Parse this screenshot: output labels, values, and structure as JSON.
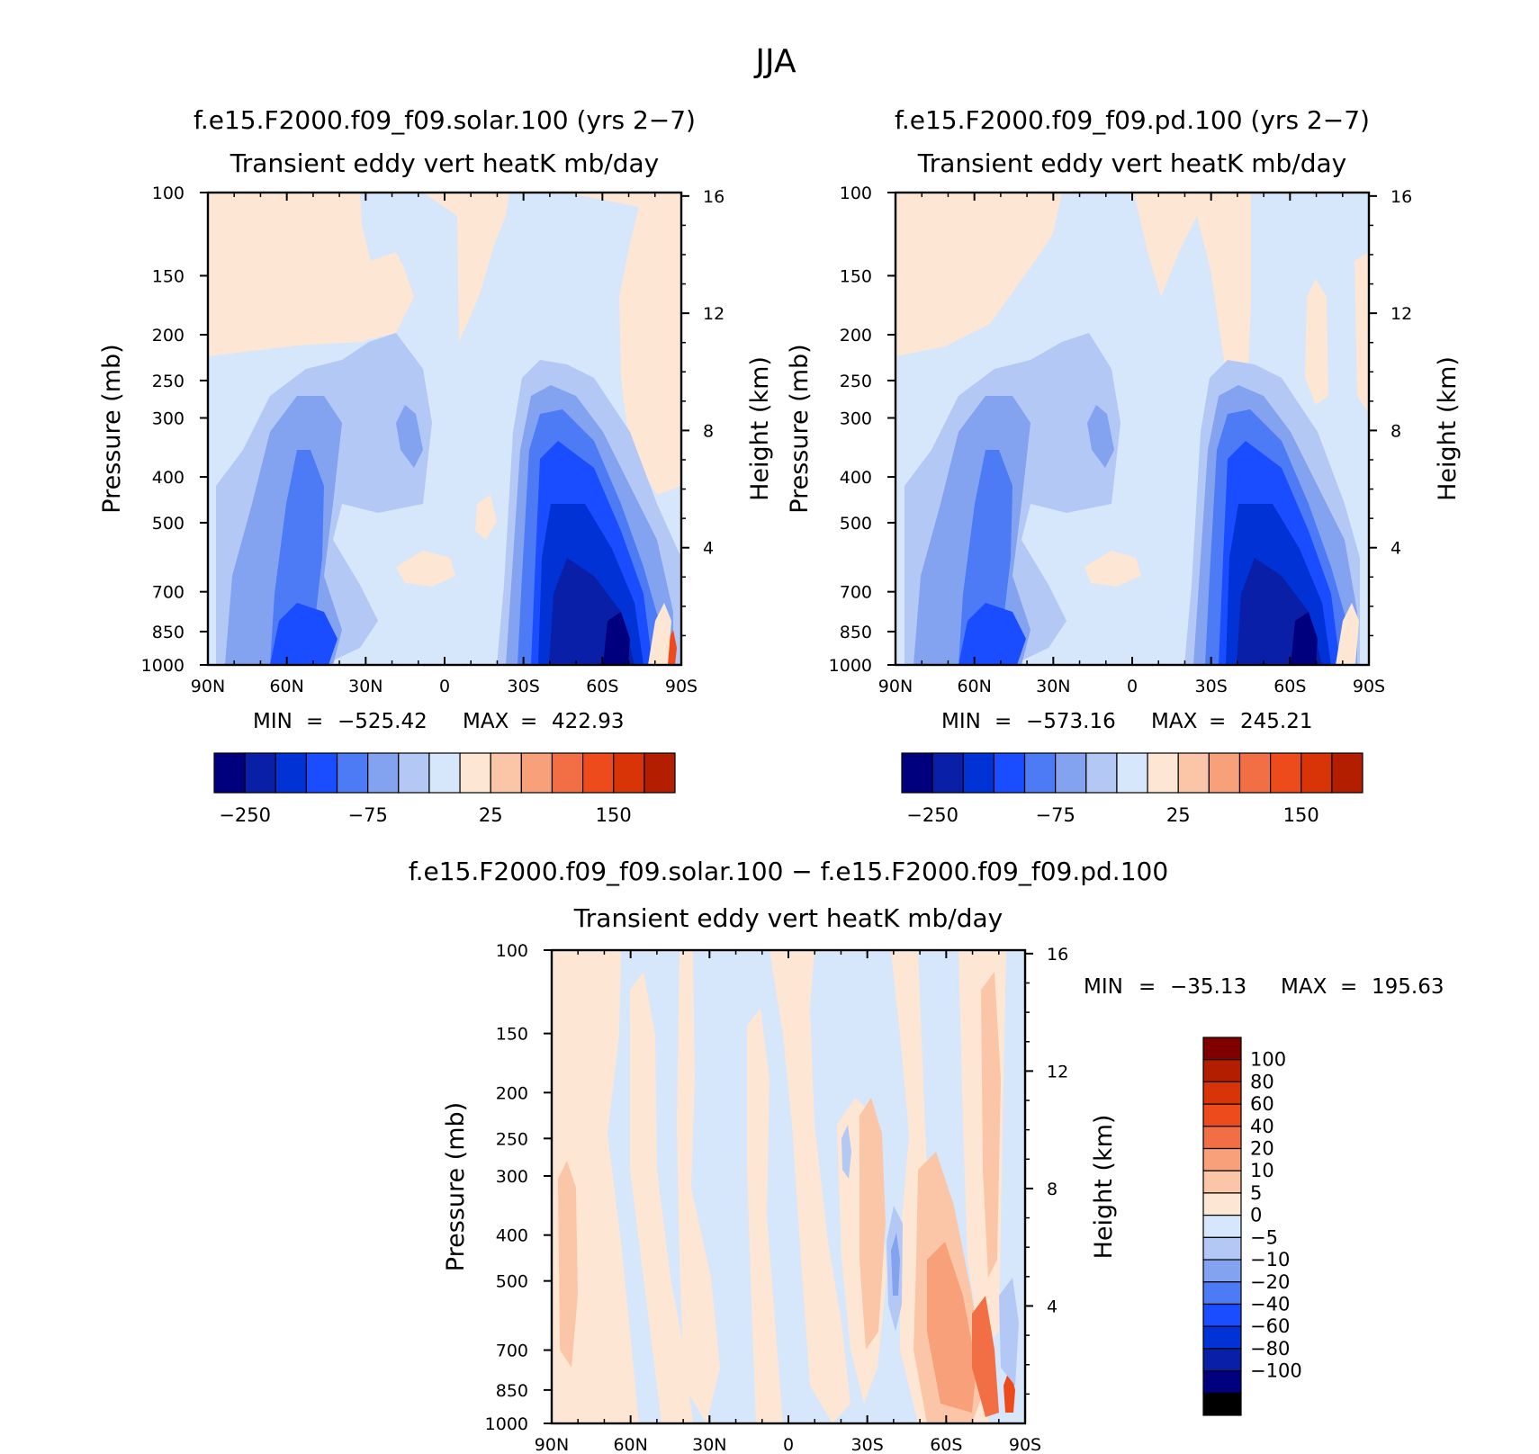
{
  "figure": {
    "season": "JJA",
    "min_max_label_min": "MIN",
    "min_max_label_max": "MAX",
    "eq": "="
  },
  "chart_data": [
    {
      "type": "heatmap",
      "id": "panel1",
      "title": "f.e15.F2000.f09_f09.solar.100 (yrs 2−7)",
      "subtitle": "Transient eddy vert heatK mb/day",
      "ylabel": "Pressure (mb)",
      "y2label": "Height (km)",
      "xticks": [
        "90N",
        "60N",
        "30N",
        "0",
        "30S",
        "60S",
        "90S"
      ],
      "xlim": [
        90,
        -90
      ],
      "yticks": [
        100,
        150,
        200,
        250,
        300,
        400,
        500,
        700,
        850,
        1000
      ],
      "ylim": [
        100,
        1000
      ],
      "yscale": "log",
      "y2ticks": [
        16,
        12,
        8,
        4
      ],
      "min": "−525.42",
      "max": "422.93",
      "colorbar_levels": [
        -250,
        -200,
        -150,
        -100,
        -75,
        -50,
        -25,
        0,
        25,
        50,
        75,
        100,
        150,
        200
      ],
      "colorbar_labels": [
        "−250",
        "−75",
        "25",
        "150"
      ]
    },
    {
      "type": "heatmap",
      "id": "panel2",
      "title": "f.e15.F2000.f09_f09.pd.100 (yrs 2−7)",
      "subtitle": "Transient eddy vert heatK mb/day",
      "ylabel": "Pressure (mb)",
      "y2label": "Height (km)",
      "xticks": [
        "90N",
        "60N",
        "30N",
        "0",
        "30S",
        "60S",
        "90S"
      ],
      "xlim": [
        90,
        -90
      ],
      "yticks": [
        100,
        150,
        200,
        250,
        300,
        400,
        500,
        700,
        850,
        1000
      ],
      "ylim": [
        100,
        1000
      ],
      "yscale": "log",
      "y2ticks": [
        16,
        12,
        8,
        4
      ],
      "min": "−573.16",
      "max": "245.21",
      "colorbar_levels": [
        -250,
        -200,
        -150,
        -100,
        -75,
        -50,
        -25,
        0,
        25,
        50,
        75,
        100,
        150,
        200
      ],
      "colorbar_labels": [
        "−250",
        "−75",
        "25",
        "150"
      ]
    },
    {
      "type": "heatmap",
      "id": "panel3",
      "title": "f.e15.F2000.f09_f09.solar.100 − f.e15.F2000.f09_f09.pd.100",
      "subtitle": "Transient eddy vert heatK mb/day",
      "ylabel": "Pressure (mb)",
      "y2label": "Height (km)",
      "xticks": [
        "90N",
        "60N",
        "30N",
        "0",
        "30S",
        "60S",
        "90S"
      ],
      "xlim": [
        90,
        -90
      ],
      "yticks": [
        100,
        150,
        200,
        250,
        300,
        400,
        500,
        700,
        850,
        1000
      ],
      "ylim": [
        100,
        1000
      ],
      "yscale": "log",
      "y2ticks": [
        16,
        12,
        8,
        4
      ],
      "min": "−35.13",
      "max": "195.63",
      "colorbar_levels": [
        -100,
        -80,
        -60,
        -40,
        -20,
        -10,
        -5,
        0,
        5,
        10,
        20,
        40,
        60,
        80,
        100
      ],
      "colorbar_labels": [
        "100",
        "80",
        "60",
        "40",
        "20",
        "10",
        "5",
        "0",
        "−5",
        "−10",
        "−20",
        "−40",
        "−60",
        "−80",
        "−100"
      ]
    }
  ],
  "colors": {
    "scale": [
      "#00007f",
      "#0a1fa8",
      "#0032d6",
      "#1a4dff",
      "#4d7af5",
      "#83a3f0",
      "#b3c8f5",
      "#d6e6fb",
      "#fde7d4",
      "#fbc6a8",
      "#f8a07a",
      "#f26f45",
      "#ee4b1d",
      "#d93408",
      "#b31e00",
      "#800000"
    ]
  }
}
